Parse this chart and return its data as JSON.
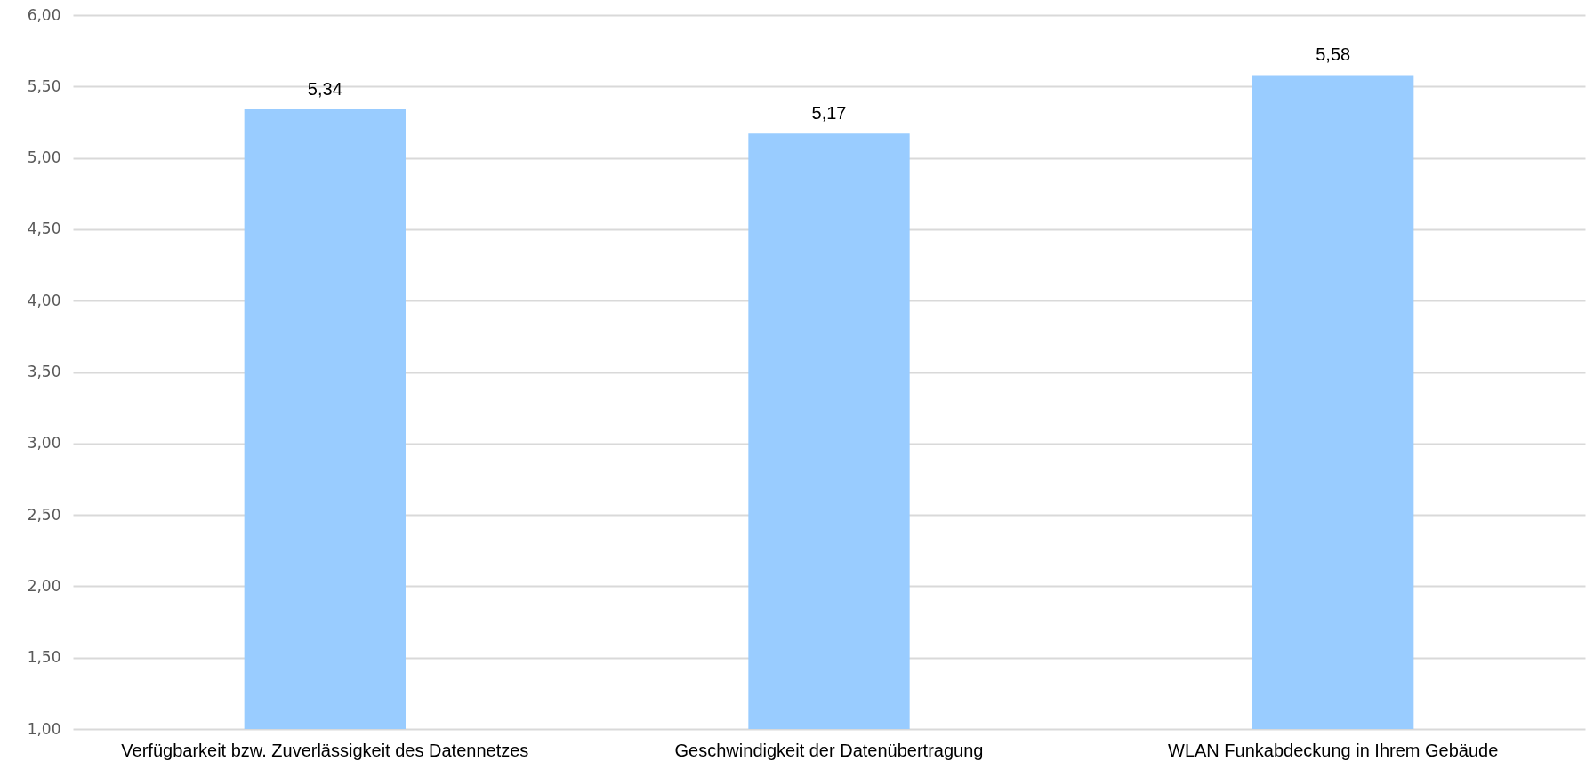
{
  "chart_data": {
    "type": "bar",
    "categories": [
      "Verfügbarkeit bzw. Zuverlässigkeit des Datennetzes",
      "Geschwindigkeit der Datenübertragung",
      "WLAN Funkabdeckung in Ihrem Gebäude"
    ],
    "values": [
      5.34,
      5.17,
      5.58
    ],
    "value_labels": [
      "5,34",
      "5,17",
      "5,58"
    ],
    "color": "#99ccff",
    "ylim": [
      1,
      6
    ],
    "yticks": [
      {
        "value": 1,
        "label": "1,00"
      },
      {
        "value": 1.5,
        "label": "1,50"
      },
      {
        "value": 2,
        "label": "2,00"
      },
      {
        "value": 2.5,
        "label": "2,50"
      },
      {
        "value": 3,
        "label": "3,00"
      },
      {
        "value": 3.5,
        "label": "3,50"
      },
      {
        "value": 4,
        "label": "4,00"
      },
      {
        "value": 4.5,
        "label": "4,50"
      },
      {
        "value": 5,
        "label": "5,00"
      },
      {
        "value": 5.5,
        "label": "5,50"
      },
      {
        "value": 6,
        "label": "6,00"
      }
    ],
    "grid": "y"
  }
}
